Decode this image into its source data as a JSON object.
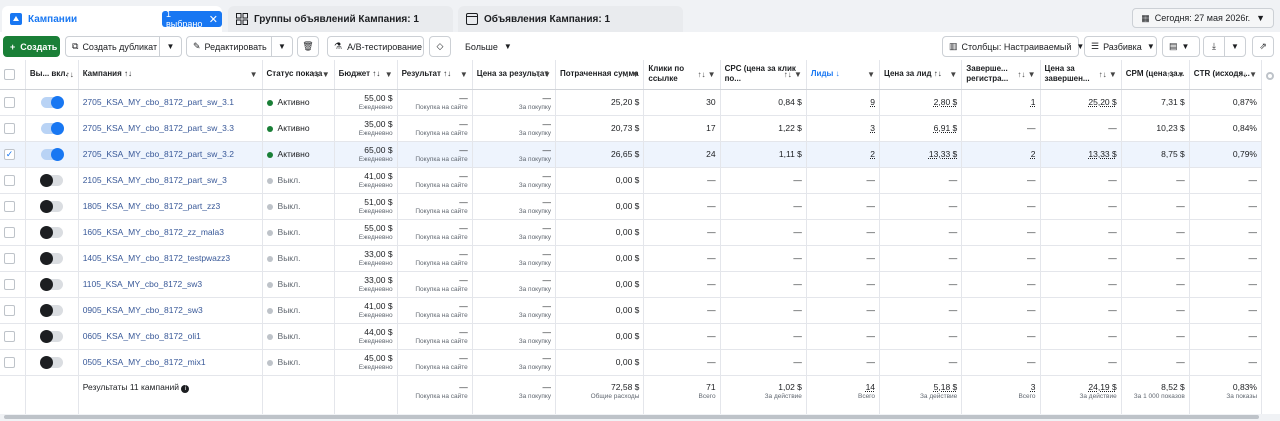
{
  "tabs": [
    {
      "label": "Кампании"
    },
    {
      "label": "Группы объявлений Кампания: 1"
    },
    {
      "label": "Объявления Кампания: 1"
    }
  ],
  "selection": "1 выбрано",
  "date": "Сегодня: 27 мая 2026г.",
  "toolbar": {
    "create": "Создать",
    "duplicate": "Создать дубликат",
    "edit": "Редактировать",
    "ab": "A/B-тестирование",
    "more": "Больше",
    "columns": "Столбцы: Настраиваемый",
    "breakdown": "Разбивка"
  },
  "headers": {
    "onoff": "Вы... вкл.",
    "campaign": "Кампания",
    "status": "Статус показа",
    "budget": "Бюджет",
    "result": "Результат",
    "cpr": "Цена за результат",
    "spent": "Потраченная сумма",
    "clicks": "Клики по ссылке",
    "cpc": "CPC (цена за клик по...",
    "leads": "Лиды",
    "cpl": "Цена за лид",
    "reg": "Заверше... регистра...",
    "cpreg": "Цена за завершен...",
    "cpm": "CPM (цена за...",
    "ctr": "CTR (исходя..."
  },
  "rows": [
    {
      "name": "2705_KSA_MY_cbo_8172_part_sw_3.1",
      "on": true,
      "status": "Активно",
      "budget": "55,00 $",
      "budget_sub": "Ежедневно",
      "result": "—",
      "result_sub": "Покупка на сайте",
      "cpr": "—",
      "cpr_sub": "За покупку",
      "spent": "25,20 $",
      "clicks": "30",
      "cpc": "0,84 $",
      "leads": "9",
      "cpl": "2,80 $",
      "reg": "1",
      "cpreg": "25,20 $",
      "cpm": "7,31 $",
      "ctr": "0,87%",
      "selected": false
    },
    {
      "name": "2705_KSA_MY_cbo_8172_part_sw_3.3",
      "on": true,
      "status": "Активно",
      "budget": "35,00 $",
      "budget_sub": "Ежедневно",
      "result": "—",
      "result_sub": "Покупка на сайте",
      "cpr": "—",
      "cpr_sub": "За покупку",
      "spent": "20,73 $",
      "clicks": "17",
      "cpc": "1,22 $",
      "leads": "3",
      "cpl": "6,91 $",
      "reg": "—",
      "cpreg": "—",
      "cpm": "10,23 $",
      "ctr": "0,84%",
      "selected": false
    },
    {
      "name": "2705_KSA_MY_cbo_8172_part_sw_3.2",
      "on": true,
      "status": "Активно",
      "budget": "65,00 $",
      "budget_sub": "Ежедневно",
      "result": "—",
      "result_sub": "Покупка на сайте",
      "cpr": "—",
      "cpr_sub": "За покупку",
      "spent": "26,65 $",
      "clicks": "24",
      "cpc": "1,11 $",
      "leads": "2",
      "cpl": "13,33 $",
      "reg": "2",
      "cpreg": "13,33 $",
      "cpm": "8,75 $",
      "ctr": "0,79%",
      "selected": true
    },
    {
      "name": "2105_KSA_MY_cbo_8172_part_sw_3",
      "on": false,
      "status": "Выкл.",
      "budget": "41,00 $",
      "budget_sub": "Ежедневно",
      "result": "—",
      "result_sub": "Покупка на сайте",
      "cpr": "—",
      "cpr_sub": "За покупку",
      "spent": "0,00 $",
      "clicks": "—",
      "cpc": "—",
      "leads": "—",
      "cpl": "—",
      "reg": "—",
      "cpreg": "—",
      "cpm": "—",
      "ctr": "—",
      "selected": false
    },
    {
      "name": "1805_KSA_MY_cbo_8172_part_zz3",
      "on": false,
      "status": "Выкл.",
      "budget": "51,00 $",
      "budget_sub": "Ежедневно",
      "result": "—",
      "result_sub": "Покупка на сайте",
      "cpr": "—",
      "cpr_sub": "За покупку",
      "spent": "0,00 $",
      "clicks": "—",
      "cpc": "—",
      "leads": "—",
      "cpl": "—",
      "reg": "—",
      "cpreg": "—",
      "cpm": "—",
      "ctr": "—",
      "selected": false
    },
    {
      "name": "1605_KSA_MY_cbo_8172_zz_mala3",
      "on": false,
      "status": "Выкл.",
      "budget": "55,00 $",
      "budget_sub": "Ежедневно",
      "result": "—",
      "result_sub": "Покупка на сайте",
      "cpr": "—",
      "cpr_sub": "За покупку",
      "spent": "0,00 $",
      "clicks": "—",
      "cpc": "—",
      "leads": "—",
      "cpl": "—",
      "reg": "—",
      "cpreg": "—",
      "cpm": "—",
      "ctr": "—",
      "selected": false
    },
    {
      "name": "1405_KSA_MY_cbo_8172_testpwazz3",
      "on": false,
      "status": "Выкл.",
      "budget": "33,00 $",
      "budget_sub": "Ежедневно",
      "result": "—",
      "result_sub": "Покупка на сайте",
      "cpr": "—",
      "cpr_sub": "За покупку",
      "spent": "0,00 $",
      "clicks": "—",
      "cpc": "—",
      "leads": "—",
      "cpl": "—",
      "reg": "—",
      "cpreg": "—",
      "cpm": "—",
      "ctr": "—",
      "selected": false
    },
    {
      "name": "1105_KSA_MY_cbo_8172_sw3",
      "on": false,
      "status": "Выкл.",
      "budget": "33,00 $",
      "budget_sub": "Ежедневно",
      "result": "—",
      "result_sub": "Покупка на сайте",
      "cpr": "—",
      "cpr_sub": "За покупку",
      "spent": "0,00 $",
      "clicks": "—",
      "cpc": "—",
      "leads": "—",
      "cpl": "—",
      "reg": "—",
      "cpreg": "—",
      "cpm": "—",
      "ctr": "—",
      "selected": false
    },
    {
      "name": "0905_KSA_MY_cbo_8172_sw3",
      "on": false,
      "status": "Выкл.",
      "budget": "41,00 $",
      "budget_sub": "Ежедневно",
      "result": "—",
      "result_sub": "Покупка на сайте",
      "cpr": "—",
      "cpr_sub": "За покупку",
      "spent": "0,00 $",
      "clicks": "—",
      "cpc": "—",
      "leads": "—",
      "cpl": "—",
      "reg": "—",
      "cpreg": "—",
      "cpm": "—",
      "ctr": "—",
      "selected": false
    },
    {
      "name": "0605_KSA_MY_cbo_8172_oli1",
      "on": false,
      "status": "Выкл.",
      "budget": "44,00 $",
      "budget_sub": "Ежедневно",
      "result": "—",
      "result_sub": "Покупка на сайте",
      "cpr": "—",
      "cpr_sub": "За покупку",
      "spent": "0,00 $",
      "clicks": "—",
      "cpc": "—",
      "leads": "—",
      "cpl": "—",
      "reg": "—",
      "cpreg": "—",
      "cpm": "—",
      "ctr": "—",
      "selected": false
    },
    {
      "name": "0505_KSA_MY_cbo_8172_mix1",
      "on": false,
      "status": "Выкл.",
      "budget": "45,00 $",
      "budget_sub": "Ежедневно",
      "result": "—",
      "result_sub": "Покупка на сайте",
      "cpr": "—",
      "cpr_sub": "За покупку",
      "spent": "0,00 $",
      "clicks": "—",
      "cpc": "—",
      "leads": "—",
      "cpl": "—",
      "reg": "—",
      "cpreg": "—",
      "cpm": "—",
      "ctr": "—",
      "selected": false
    }
  ],
  "totals": {
    "label": "Результаты 11 кампаний",
    "result": "—",
    "result_sub": "Покупка на сайте",
    "cpr": "—",
    "cpr_sub": "За покупку",
    "spent": "72,58 $",
    "spent_sub": "Общие расходы",
    "clicks": "71",
    "clicks_sub": "Всего",
    "cpc": "1,02 $",
    "cpc_sub": "За действие",
    "leads": "14",
    "leads_sub": "Всего",
    "cpl": "5,18 $",
    "cpl_sub": "За действие",
    "reg": "3",
    "reg_sub": "Всего",
    "cpreg": "24,19 $",
    "cpreg_sub": "За действие",
    "cpm": "8,52 $",
    "cpm_sub": "За 1 000 показов",
    "ctr": "0,83%",
    "ctr_sub": "За показы"
  },
  "colors": {
    "active": "#1a7f37",
    "inactive": "#bec3c9",
    "accent": "#1877f2"
  }
}
